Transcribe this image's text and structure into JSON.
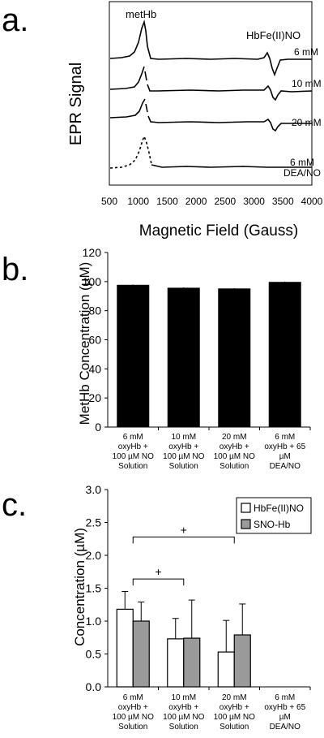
{
  "chart_data": [
    {
      "panel": "a.",
      "type": "line",
      "ylabel": "EPR Signal",
      "xlabel": "Magnetic Field (Gauss)",
      "xlim": [
        500,
        4000
      ],
      "xticks": [
        "500",
        "1000",
        "1500",
        "2000",
        "2500",
        "3000",
        "3500",
        "4000"
      ],
      "annotations": [
        "metHb",
        "HbFe(II)NO"
      ],
      "series": [
        {
          "name": "6 mM"
        },
        {
          "name": "10 mM"
        },
        {
          "name": "20 mM"
        },
        {
          "name": "6 mM",
          "name2": "DEA/NO"
        }
      ]
    },
    {
      "panel": "b.",
      "type": "bar",
      "ylabel": "MetHb Concentration (µM)",
      "ylim": [
        0,
        120
      ],
      "yticks": [
        "0",
        "20",
        "40",
        "60",
        "80",
        "100",
        "120"
      ],
      "categories": [
        [
          "6 mM",
          "oxyHb +",
          "100 µM NO",
          "Solution"
        ],
        [
          "10 mM",
          "oxyHb +",
          "100 µM NO",
          "Solution"
        ],
        [
          "20 mM",
          "oxyHb +",
          "100 µM NO",
          "Solution"
        ],
        [
          "6 mM",
          "oxyHb + 65",
          "µM",
          "DEA/NO"
        ]
      ],
      "values": [
        97.5,
        95.5,
        95,
        99.5
      ],
      "errors": [
        0.5,
        0.5,
        0.5,
        0.5
      ],
      "color": "#000000"
    },
    {
      "panel": "c.",
      "type": "bar",
      "ylabel": "Concentration (µM)",
      "ylim": [
        0,
        3.0
      ],
      "yticks": [
        "0.0",
        "0.5",
        "1.0",
        "1.5",
        "2.0",
        "2.5",
        "3.0"
      ],
      "categories": [
        [
          "6 mM",
          "oxyHb +",
          "100 µM NO",
          "Solution"
        ],
        [
          "10 mM",
          "oxyHb +",
          "100 µM NO",
          "Solution"
        ],
        [
          "20 mM",
          "oxyHb +",
          "100 µM NO",
          "Solution"
        ],
        [
          "6 mM",
          "oxyHb + 65",
          "µM",
          "DEA/NO"
        ]
      ],
      "series": [
        {
          "name": "HbFe(II)NO",
          "values": [
            1.18,
            0.73,
            0.53,
            null
          ],
          "errors": [
            0.27,
            0.31,
            0.48,
            null
          ],
          "color": "#ffffff"
        },
        {
          "name": "SNO-Hb",
          "values": [
            1.0,
            0.74,
            0.79,
            null
          ],
          "errors": [
            0.29,
            0.58,
            0.47,
            null
          ],
          "color": "#9a9a9a"
        }
      ],
      "significance": [
        "+",
        "+"
      ],
      "legend": "top-right"
    }
  ]
}
